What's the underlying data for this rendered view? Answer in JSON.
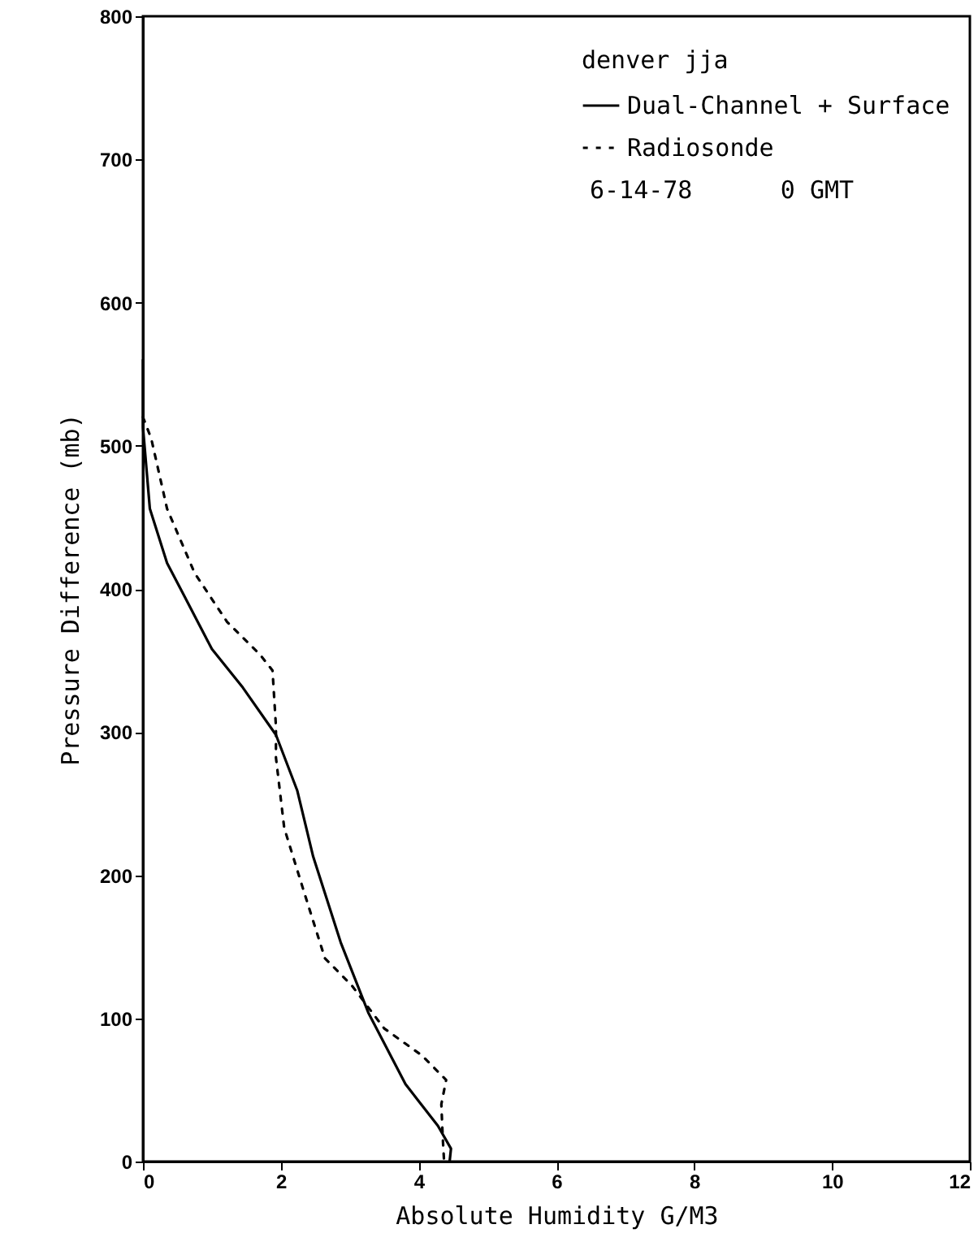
{
  "chart_data": {
    "type": "line",
    "xlabel": "Absolute Humidity G/M3",
    "ylabel": "Pressure Difference (mb)",
    "legend_title": "denver jja",
    "legend": "top right",
    "grid": false,
    "xlim": [
      0,
      12
    ],
    "xticks": [
      0,
      2,
      4,
      6,
      8,
      10,
      12
    ],
    "ylim": [
      0,
      800
    ],
    "yticks": [
      0,
      100,
      200,
      300,
      400,
      500,
      600,
      700,
      800
    ],
    "annotations": [
      "6-14-78      0 GMT"
    ],
    "series": [
      {
        "name": "Dual-Channel + Surface",
        "color": "#000000",
        "line_style": "solid",
        "x": [
          0,
          0,
          0.1,
          0.35,
          0.6,
          1.0,
          1.45,
          1.93,
          2.24,
          2.47,
          2.87,
          3.27,
          3.81,
          4.28,
          4.47,
          4.45
        ],
        "values": [
          560,
          513,
          456,
          418,
          395,
          358,
          331,
          298,
          259,
          213,
          153,
          104,
          54,
          25,
          9,
          0
        ]
      },
      {
        "name": "Radiosonde",
        "color": "#000000",
        "line_style": "dotted",
        "x": [
          0,
          0.12,
          0.35,
          0.75,
          1.22,
          1.7,
          1.88,
          1.93,
          1.93,
          2.05,
          2.32,
          2.64,
          3.03,
          3.5,
          4.05,
          4.4,
          4.33,
          4.35,
          4.37
        ],
        "values": [
          520,
          505,
          456,
          411,
          377,
          354,
          343,
          304,
          282,
          233,
          191,
          142,
          123,
          93,
          74,
          57,
          40,
          17,
          0
        ]
      }
    ]
  }
}
